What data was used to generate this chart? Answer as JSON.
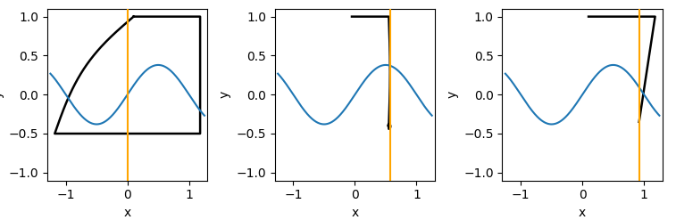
{
  "figsize": [
    7.57,
    2.47
  ],
  "dpi": 100,
  "xlim": [
    -1.3,
    1.3
  ],
  "ylim": [
    -1.1,
    1.1
  ],
  "xlabel": "x",
  "ylabel": "y",
  "orange_color": "#FFA500",
  "black_color": "#000000",
  "blue_color": "#1f77b4",
  "orange_x": [
    0.0,
    0.57,
    0.92
  ],
  "wspace": 0.42,
  "lw_black": 1.8,
  "lw_blue": 1.5,
  "lw_orange": 1.5
}
